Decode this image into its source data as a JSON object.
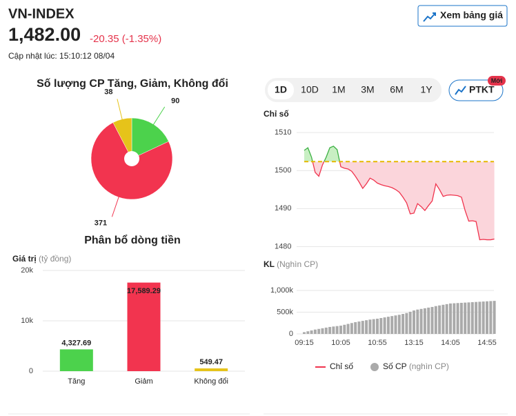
{
  "header": {
    "title": "VN-INDEX",
    "price": "1,482.00",
    "change": "-20.35",
    "change_pct": "(-1.35%)",
    "updated": "Cập nhật lúc: 15:10:12 08/04",
    "button": "Xem bảng giá",
    "tabs": [
      "1D",
      "10D",
      "1M",
      "3M",
      "6M",
      "1Y"
    ],
    "analysis_button": "PTKT",
    "badge": "Mới"
  },
  "chart_data": [
    {
      "type": "pie",
      "title": "Số lượng CP Tăng, Giảm, Không đổi",
      "values": [
        90,
        371,
        38
      ],
      "colors": [
        "#4cd24c",
        "#f2344f",
        "#e6c31a"
      ]
    },
    {
      "type": "bar",
      "title": "Phân bổ dòng tiền",
      "ylabel": "Giá trị",
      "yunit": "(tỷ đồng)",
      "categories": [
        "Tăng",
        "Giảm",
        "Không đổi"
      ],
      "values": [
        4327.69,
        17589.29,
        549.47
      ],
      "value_labels": [
        "4,327.69",
        "17,589.29",
        "549.47"
      ],
      "colors": [
        "#4cd24c",
        "#f2344f",
        "#e6c31a"
      ],
      "ylim": [
        0,
        20000
      ],
      "yticks": [
        0,
        {
          "value": 10000,
          "label": "10k"
        },
        {
          "value": 20000,
          "label": "20k"
        }
      ],
      "grid": true
    },
    {
      "type": "line",
      "name": "Chỉ số",
      "color": "#f0334d",
      "up_color": "#c8efc3",
      "down_color": "#fbd5db",
      "reference": {
        "value": 1502.35,
        "color": "#e6b800"
      },
      "values": [
        1505.3,
        1506.0,
        1503.5,
        1499.5,
        1498.5,
        1501.5,
        1503.5,
        1506.0,
        1506.4,
        1505.5,
        1501.0,
        1500.6,
        1500.4,
        1499.8,
        1498.5,
        1497.0,
        1495.3,
        1496.5,
        1498.0,
        1497.5,
        1496.7,
        1496.3,
        1496.0,
        1495.8,
        1495.5,
        1495.0,
        1494.3,
        1493.0,
        1491.5,
        1488.6,
        1488.8,
        1491.3,
        1490.5,
        1489.5,
        1490.8,
        1492.0,
        1496.5,
        1495.0,
        1493.2,
        1493.5,
        1493.6,
        1493.5,
        1493.4,
        1493.0,
        1489.5,
        1486.7,
        1486.8,
        1486.6,
        1481.8,
        1481.9,
        1481.8,
        1481.8,
        1482.0
      ],
      "ylim": [
        1478,
        1515
      ],
      "yticks": [
        1480,
        1490,
        1500,
        1510
      ],
      "grid": true
    },
    {
      "type": "bar",
      "name": "Số CP",
      "label": "KL",
      "unit": "(Nghìn CP)",
      "legend_unit": "(nghìn CP)",
      "color": "#aaaaaa",
      "categories": [
        "09:15",
        null,
        null,
        null,
        null,
        null,
        null,
        null,
        null,
        null,
        "10:05",
        null,
        null,
        null,
        null,
        null,
        null,
        null,
        null,
        null,
        "10:55",
        null,
        null,
        null,
        null,
        null,
        null,
        null,
        null,
        null,
        "13:15",
        null,
        null,
        null,
        null,
        null,
        null,
        null,
        null,
        null,
        "14:05",
        null,
        null,
        null,
        null,
        null,
        null,
        null,
        null,
        null,
        "14:55",
        null,
        null
      ],
      "values": [
        40,
        60,
        80,
        100,
        115,
        130,
        145,
        160,
        170,
        180,
        190,
        210,
        230,
        250,
        270,
        285,
        300,
        315,
        330,
        340,
        350,
        365,
        380,
        395,
        410,
        425,
        440,
        460,
        480,
        510,
        540,
        560,
        575,
        590,
        605,
        620,
        640,
        655,
        670,
        685,
        700,
        705,
        710,
        715,
        720,
        725,
        730,
        735,
        740,
        745,
        750,
        755,
        760
      ],
      "ylim": [
        0,
        1250
      ],
      "yticks": [
        0,
        {
          "value": 500,
          "label": "500k"
        },
        {
          "value": 1000,
          "label": "1,000k"
        }
      ],
      "grid": true
    }
  ]
}
